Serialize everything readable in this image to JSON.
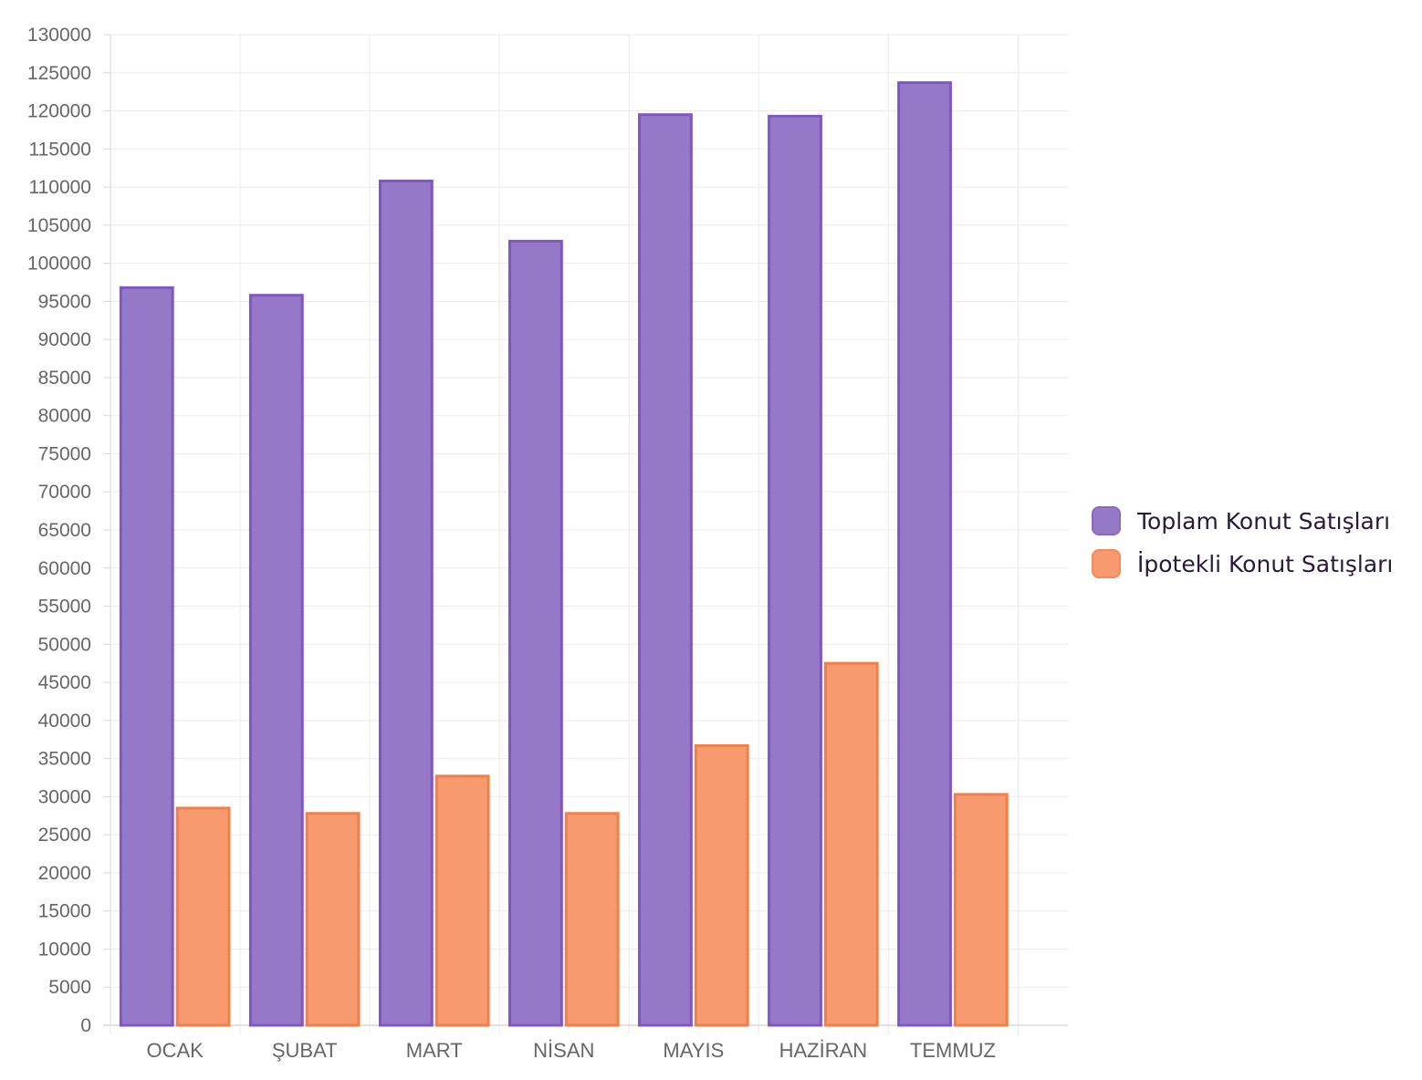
{
  "chart_data": {
    "type": "bar",
    "categories": [
      "OCAK",
      "ŞUBAT",
      "MART",
      "NİSAN",
      "MAYIS",
      "HAZİRAN",
      "TEMMUZ"
    ],
    "series": [
      {
        "name": "Toplam Konut Satışları",
        "values": [
          96800,
          95800,
          110800,
          102900,
          119500,
          119300,
          123700
        ],
        "fill": "#9678c8",
        "stroke": "#7e57c2"
      },
      {
        "name": "İpotekli Konut Satışları",
        "values": [
          28500,
          27800,
          32700,
          27800,
          36700,
          47500,
          30300
        ],
        "fill": "#f79a70",
        "stroke": "#f08048"
      }
    ],
    "ylim": [
      0,
      130000
    ],
    "ytick_step": 5000,
    "grid": true,
    "legend_position": "right"
  }
}
